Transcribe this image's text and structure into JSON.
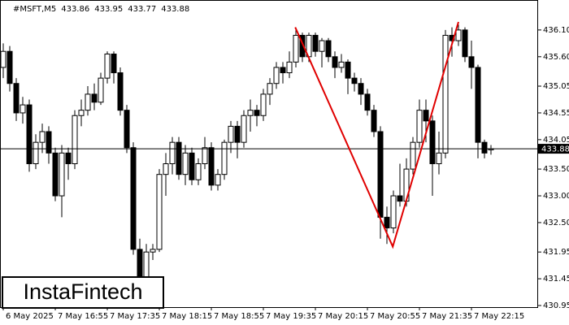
{
  "chart_data": {
    "type": "candlestick",
    "symbol": "#MSFT,M5",
    "open": [
      435.4,
      435.7,
      435.1,
      434.55,
      434.7,
      433.6,
      434.0,
      434.2,
      433.8,
      433.0,
      433.8,
      433.6,
      434.5,
      434.6,
      434.9,
      434.75,
      435.2,
      435.65,
      435.3,
      434.6,
      433.9,
      432.0,
      431.45,
      431.95,
      432.0,
      433.4,
      433.6,
      434.0,
      433.4,
      433.8,
      433.3,
      433.6,
      433.9,
      433.2,
      433.4,
      434.0,
      434.3,
      434.0,
      434.5,
      434.6,
      434.5,
      434.9,
      435.1,
      435.4,
      435.3,
      435.5,
      436.0,
      435.6,
      436.0,
      435.7,
      435.9,
      435.6,
      435.4,
      435.5,
      435.2,
      435.1,
      434.9,
      434.6,
      434.2,
      432.6,
      432.4,
      433.0,
      432.9,
      433.5,
      434.0,
      434.6,
      434.4,
      433.6,
      433.8,
      436.0,
      435.9,
      436.1,
      435.6,
      435.4,
      434.0,
      433.86
    ],
    "high": [
      435.85,
      435.8,
      435.2,
      434.85,
      434.8,
      434.15,
      434.35,
      434.3,
      433.9,
      433.95,
      433.9,
      434.6,
      434.8,
      435.05,
      435.1,
      435.3,
      435.7,
      435.7,
      435.4,
      434.7,
      434.0,
      432.2,
      432.1,
      432.1,
      433.5,
      433.8,
      434.1,
      434.1,
      433.95,
      433.9,
      433.7,
      434.1,
      434.0,
      433.5,
      434.05,
      434.4,
      434.4,
      434.6,
      434.8,
      434.7,
      435.0,
      435.2,
      435.5,
      435.5,
      435.7,
      436.1,
      436.05,
      436.05,
      436.05,
      435.95,
      435.95,
      435.7,
      435.65,
      435.55,
      435.3,
      435.2,
      435.0,
      434.7,
      434.3,
      432.8,
      433.1,
      433.6,
      433.7,
      434.1,
      434.8,
      434.8,
      434.5,
      434.2,
      436.1,
      436.15,
      436.2,
      436.15,
      435.9,
      435.45,
      434.05,
      433.95
    ],
    "low": [
      435.2,
      434.95,
      434.4,
      434.35,
      433.45,
      433.5,
      433.8,
      433.6,
      432.9,
      432.6,
      433.3,
      433.5,
      434.3,
      434.5,
      434.6,
      434.7,
      435.1,
      435.1,
      434.5,
      433.8,
      431.9,
      431.4,
      431.2,
      431.8,
      431.95,
      433.0,
      433.4,
      433.3,
      433.2,
      433.2,
      433.2,
      433.5,
      433.1,
      433.1,
      433.3,
      433.8,
      433.7,
      433.9,
      434.2,
      434.3,
      434.4,
      434.7,
      435.0,
      435.1,
      435.2,
      435.4,
      435.5,
      435.5,
      435.6,
      435.4,
      435.5,
      435.2,
      435.3,
      434.9,
      434.95,
      434.7,
      434.5,
      434.1,
      432.2,
      432.1,
      432.3,
      432.8,
      432.8,
      433.4,
      433.9,
      434.0,
      433.0,
      433.4,
      433.7,
      435.6,
      435.8,
      435.5,
      435.0,
      433.7,
      433.7,
      433.77
    ],
    "close": [
      435.7,
      435.1,
      434.55,
      434.7,
      433.6,
      434.0,
      434.2,
      433.8,
      433.0,
      433.8,
      433.6,
      434.5,
      434.6,
      434.9,
      434.75,
      435.2,
      435.65,
      435.3,
      434.6,
      433.9,
      432.0,
      431.45,
      431.95,
      432.0,
      433.4,
      433.6,
      434.0,
      433.4,
      433.8,
      433.3,
      433.6,
      433.9,
      433.2,
      433.4,
      434.0,
      434.3,
      434.0,
      434.5,
      434.6,
      434.5,
      434.9,
      435.1,
      435.4,
      435.3,
      435.5,
      436.0,
      435.6,
      436.0,
      435.7,
      435.9,
      435.6,
      435.4,
      435.5,
      435.2,
      435.1,
      434.9,
      434.6,
      434.2,
      432.6,
      432.4,
      433.0,
      432.9,
      433.5,
      434.0,
      434.6,
      434.4,
      433.6,
      433.8,
      436.0,
      435.9,
      436.1,
      435.6,
      435.4,
      434.0,
      433.8,
      433.88
    ],
    "xlim": [
      -0.5,
      82.25
    ],
    "xticks": [
      {
        "value": 0,
        "label": "6 May 2025"
      },
      {
        "value": 8,
        "label": "7 May 16:55"
      },
      {
        "value": 16,
        "label": "7 May 17:35"
      },
      {
        "value": 24,
        "label": "7 May 18:15"
      },
      {
        "value": 32,
        "label": "7 May 18:55"
      },
      {
        "value": 40,
        "label": "7 May 19:35"
      },
      {
        "value": 48,
        "label": "7 May 20:15"
      },
      {
        "value": 56,
        "label": "7 May 20:55"
      },
      {
        "value": 64,
        "label": "7 May 21:35"
      },
      {
        "value": 72,
        "label": "7 May 22:15"
      }
    ],
    "ylim": [
      430.92,
      436.66
    ],
    "yticks": [
      {
        "value": 436.1,
        "label": "436.10"
      },
      {
        "value": 435.6,
        "label": "435.60"
      },
      435.05,
      434.55,
      434.05,
      {
        "value": 433.5,
        "label": "433.50"
      },
      {
        "value": 433.0,
        "label": "433.00"
      },
      {
        "value": 432.5,
        "label": "432.50"
      },
      431.95,
      431.45,
      430.95
    ],
    "pattern": {
      "color": "#e00000",
      "x": [
        44.9,
        59.9,
        70
      ],
      "y": [
        436.15,
        432.05,
        436.25
      ]
    },
    "logo": "InstaFintech"
  }
}
